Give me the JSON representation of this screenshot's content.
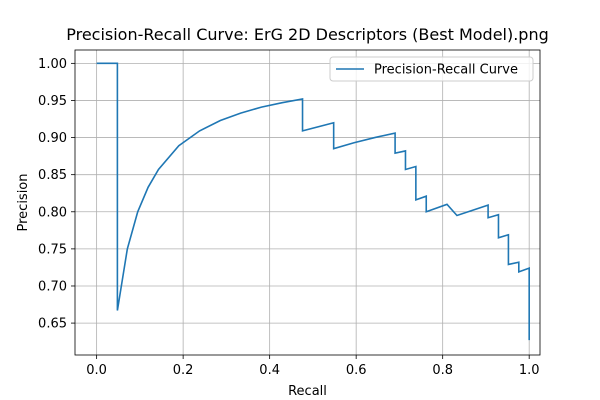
{
  "chart_data": {
    "type": "line",
    "title": "Precision-Recall Curve: ErG 2D Descriptors (Best Model).png",
    "xlabel": "Recall",
    "ylabel": "Precision",
    "xlim": [
      -0.05,
      1.025
    ],
    "ylim": [
      0.607,
      1.018
    ],
    "x_ticks": [
      0.0,
      0.2,
      0.4,
      0.6,
      0.8,
      1.0
    ],
    "x_tick_labels": [
      "0.0",
      "0.2",
      "0.4",
      "0.6",
      "0.8",
      "1.0"
    ],
    "y_ticks": [
      0.65,
      0.7,
      0.75,
      0.8,
      0.85,
      0.9,
      0.95,
      1.0
    ],
    "y_tick_labels": [
      "0.65",
      "0.70",
      "0.75",
      "0.80",
      "0.85",
      "0.90",
      "0.95",
      "1.00"
    ],
    "grid": true,
    "legend": "top-right",
    "color": "#1f77b4",
    "series": [
      {
        "name": "Precision-Recall Curve",
        "x": [
          0.0,
          0.048,
          0.048,
          0.071,
          0.095,
          0.119,
          0.143,
          0.19,
          0.238,
          0.286,
          0.333,
          0.381,
          0.429,
          0.476,
          0.476,
          0.548,
          0.548,
          0.595,
          0.643,
          0.69,
          0.69,
          0.714,
          0.714,
          0.738,
          0.738,
          0.762,
          0.762,
          0.81,
          0.833,
          0.905,
          0.905,
          0.929,
          0.929,
          0.952,
          0.952,
          0.976,
          0.976,
          1.0,
          1.0
        ],
        "y": [
          1.0,
          1.0,
          0.667,
          0.75,
          0.8,
          0.833,
          0.857,
          0.889,
          0.909,
          0.923,
          0.933,
          0.941,
          0.947,
          0.952,
          0.909,
          0.92,
          0.885,
          0.893,
          0.9,
          0.906,
          0.879,
          0.882,
          0.857,
          0.861,
          0.816,
          0.821,
          0.8,
          0.81,
          0.795,
          0.809,
          0.792,
          0.796,
          0.765,
          0.769,
          0.729,
          0.732,
          0.719,
          0.724,
          0.627
        ]
      }
    ]
  }
}
